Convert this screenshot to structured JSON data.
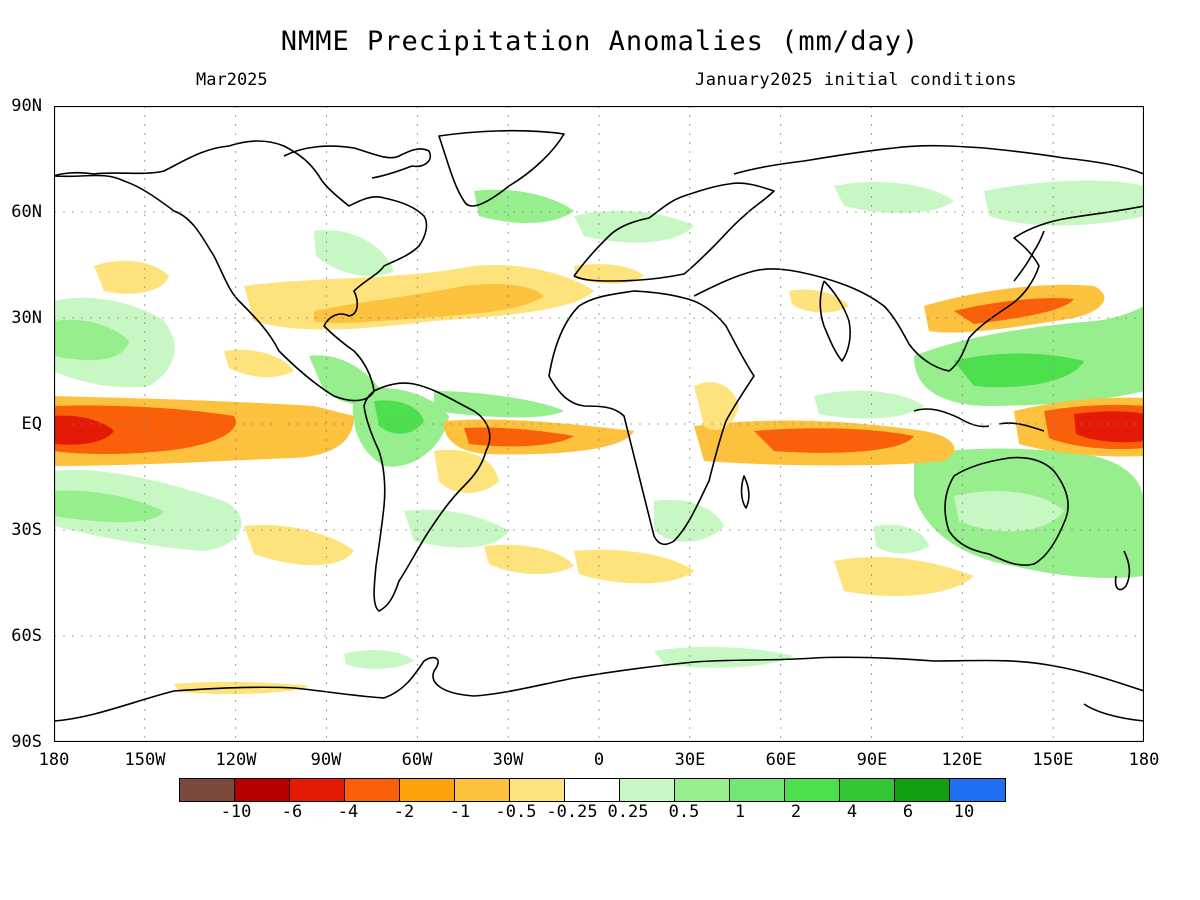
{
  "header": {
    "title": "NMME Precipitation Anomalies (mm/day)",
    "target_month": "Mar2025",
    "initial_conditions": "January2025 initial conditions"
  },
  "axes": {
    "lat_labels": [
      "90N",
      "60N",
      "30N",
      "EQ",
      "30S",
      "60S",
      "90S"
    ],
    "lon_labels": [
      "180",
      "150W",
      "120W",
      "90W",
      "60W",
      "30W",
      "0",
      "30E",
      "60E",
      "90E",
      "120E",
      "150E",
      "180"
    ]
  },
  "colorbar": {
    "colors": [
      "#7a4a3e",
      "#b80000",
      "#e41a06",
      "#fa5f0a",
      "#fca20a",
      "#fcc23e",
      "#fee37c",
      "#ffffff",
      "#c7f7c2",
      "#97ee8c",
      "#74e674",
      "#4ddf4d",
      "#34c634",
      "#12a012",
      "#1f6ff0"
    ],
    "labels": [
      "-10",
      "-6",
      "-4",
      "-2",
      "-1",
      "-0.5",
      "-0.25",
      "0.25",
      "0.5",
      "1",
      "2",
      "4",
      "6",
      "10"
    ]
  },
  "colors": {
    "dry_strong": "#e41a06",
    "dry_moderate": "#fa5f0a",
    "dry_weak": "#fca20a",
    "dry_light": "#fcc23e",
    "dry_faint": "#fee37c",
    "wet_faint": "#c7f7c2",
    "wet_light": "#97ee8c",
    "wet_moderate": "#74e674",
    "wet_strong": "#4ddf4d"
  }
}
